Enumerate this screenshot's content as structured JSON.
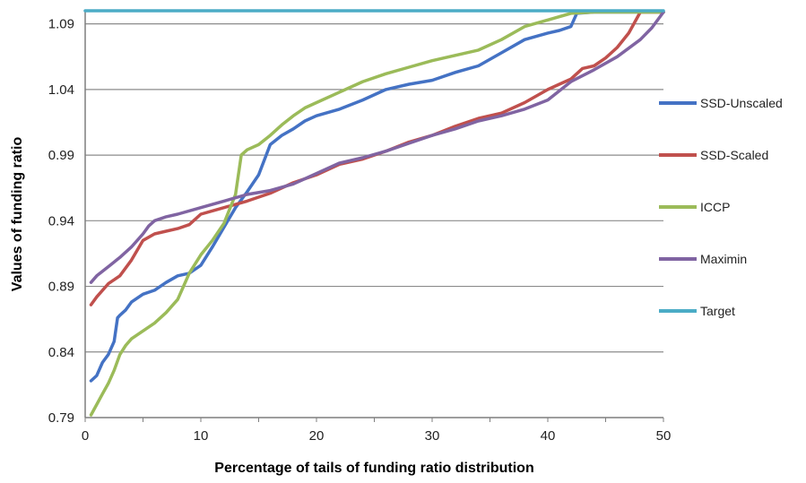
{
  "chart_data": {
    "type": "line",
    "title": "",
    "xlabel": "Percentage of tails of funding ratio distribution",
    "ylabel": "Values of funding ratio",
    "xlim": [
      0,
      50
    ],
    "ylim": [
      0.79,
      1.1
    ],
    "xticks": [
      0,
      10,
      20,
      30,
      40,
      50
    ],
    "xtick_labels": [
      "0",
      "10",
      "20",
      "30",
      "40",
      "50"
    ],
    "yticks": [
      0.79,
      0.84,
      0.89,
      0.94,
      0.99,
      1.04,
      1.09
    ],
    "ytick_labels": [
      "0.79",
      "0.84",
      "0.89",
      "0.94",
      "0.99",
      "1.04",
      "1.09"
    ],
    "grid": "horizontal",
    "legend_position": "right",
    "series": [
      {
        "name": "SSD-Unscaled",
        "color": "#4472C4",
        "x": [
          0.5,
          1,
          1.5,
          2,
          2.5,
          2.8,
          3,
          3.5,
          4,
          5,
          6,
          7,
          8,
          9,
          10,
          11,
          12,
          13,
          14,
          15,
          16,
          17,
          18,
          19,
          20,
          22,
          24,
          26,
          28,
          30,
          32,
          34,
          36,
          38,
          40,
          41,
          42,
          42.5,
          44,
          46,
          48,
          50
        ],
        "y": [
          0.818,
          0.822,
          0.832,
          0.838,
          0.848,
          0.866,
          0.868,
          0.872,
          0.878,
          0.884,
          0.887,
          0.893,
          0.898,
          0.9,
          0.906,
          0.92,
          0.935,
          0.95,
          0.962,
          0.975,
          0.998,
          1.005,
          1.01,
          1.016,
          1.02,
          1.025,
          1.032,
          1.04,
          1.044,
          1.047,
          1.053,
          1.058,
          1.068,
          1.078,
          1.083,
          1.085,
          1.088,
          1.098,
          1.099,
          1.099,
          1.099,
          1.099
        ]
      },
      {
        "name": "SSD-Scaled",
        "color": "#C0504D",
        "x": [
          0.5,
          1,
          2,
          3,
          4,
          5,
          6,
          7,
          8,
          9,
          10,
          12,
          14,
          16,
          18,
          20,
          22,
          24,
          26,
          28,
          30,
          32,
          34,
          36,
          38,
          40,
          41,
          42,
          43,
          44,
          45,
          46,
          47,
          48,
          50
        ],
        "y": [
          0.876,
          0.882,
          0.892,
          0.898,
          0.91,
          0.925,
          0.93,
          0.932,
          0.934,
          0.937,
          0.945,
          0.95,
          0.955,
          0.961,
          0.969,
          0.975,
          0.983,
          0.987,
          0.993,
          1.0,
          1.005,
          1.012,
          1.018,
          1.022,
          1.03,
          1.04,
          1.044,
          1.048,
          1.056,
          1.058,
          1.064,
          1.072,
          1.083,
          1.099,
          1.099
        ]
      },
      {
        "name": "ICCP",
        "color": "#9BBB59",
        "x": [
          0.5,
          1,
          1.5,
          2,
          2.5,
          3,
          3.5,
          4,
          5,
          6,
          7,
          8,
          8.5,
          9,
          10,
          11,
          12,
          13,
          13.5,
          14,
          15,
          16,
          17,
          18,
          19,
          20,
          22,
          24,
          26,
          28,
          30,
          32,
          34,
          36,
          38,
          40,
          42,
          44,
          46,
          48,
          50
        ],
        "y": [
          0.792,
          0.8,
          0.808,
          0.816,
          0.826,
          0.838,
          0.845,
          0.85,
          0.856,
          0.862,
          0.87,
          0.88,
          0.89,
          0.9,
          0.914,
          0.925,
          0.938,
          0.96,
          0.99,
          0.994,
          0.998,
          1.005,
          1.013,
          1.02,
          1.026,
          1.03,
          1.038,
          1.046,
          1.052,
          1.057,
          1.062,
          1.066,
          1.07,
          1.078,
          1.088,
          1.093,
          1.098,
          1.099,
          1.099,
          1.099,
          1.099
        ]
      },
      {
        "name": "Maximin",
        "color": "#8064A2",
        "x": [
          0.5,
          1,
          2,
          3,
          4,
          5,
          5.5,
          6,
          7,
          8,
          10,
          12,
          14,
          16,
          18,
          20,
          22,
          24,
          26,
          28,
          30,
          32,
          34,
          36,
          38,
          40,
          42,
          44,
          46,
          48,
          49,
          50
        ],
        "y": [
          0.893,
          0.898,
          0.905,
          0.912,
          0.92,
          0.93,
          0.936,
          0.94,
          0.943,
          0.945,
          0.95,
          0.955,
          0.96,
          0.963,
          0.968,
          0.976,
          0.984,
          0.988,
          0.993,
          0.999,
          1.005,
          1.01,
          1.016,
          1.02,
          1.025,
          1.032,
          1.046,
          1.055,
          1.065,
          1.078,
          1.087,
          1.099
        ]
      },
      {
        "name": "Target",
        "color": "#4BACC6",
        "x": [
          0,
          50
        ],
        "y": [
          1.1,
          1.1
        ]
      }
    ]
  }
}
